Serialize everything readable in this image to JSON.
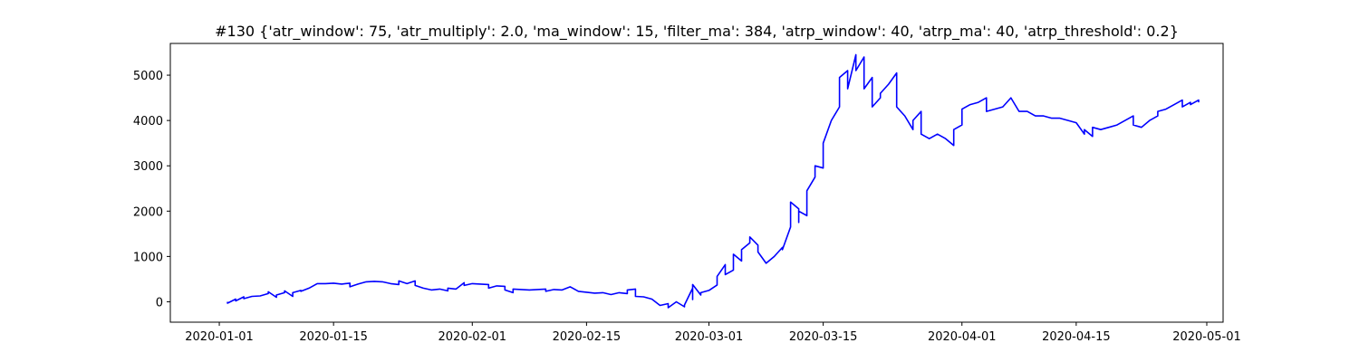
{
  "chart_data": {
    "type": "line",
    "title": "#130 {'atr_window': 75, 'atr_multiply': 2.0, 'ma_window': 15, 'filter_ma': 384, 'atrp_window': 40, 'atrp_ma': 40, 'atrp_threshold': 0.2}",
    "xlabel": "",
    "ylabel": "",
    "x_type": "date",
    "xlim": [
      "2019-12-26",
      "2020-05-03"
    ],
    "ylim": [
      -450,
      5700
    ],
    "x_ticks": [
      "2020-01-01",
      "2020-01-15",
      "2020-02-01",
      "2020-02-15",
      "2020-03-01",
      "2020-03-15",
      "2020-04-01",
      "2020-04-15",
      "2020-05-01"
    ],
    "y_ticks": [
      0,
      1000,
      2000,
      3000,
      4000,
      5000
    ],
    "grid": false,
    "series": [
      {
        "name": "",
        "color": "#0000ff",
        "points": [
          [
            "2020-01-02",
            0
          ],
          [
            "2020-01-02",
            -30
          ],
          [
            "2020-01-03",
            60
          ],
          [
            "2020-01-03",
            20
          ],
          [
            "2020-01-04",
            110
          ],
          [
            "2020-01-04",
            70
          ],
          [
            "2020-01-05",
            120
          ],
          [
            "2020-01-06",
            130
          ],
          [
            "2020-01-07",
            180
          ],
          [
            "2020-01-07",
            220
          ],
          [
            "2020-01-08",
            100
          ],
          [
            "2020-01-08",
            150
          ],
          [
            "2020-01-09",
            200
          ],
          [
            "2020-01-09",
            240
          ],
          [
            "2020-01-10",
            120
          ],
          [
            "2020-01-10",
            200
          ],
          [
            "2020-01-11",
            250
          ],
          [
            "2020-01-11",
            230
          ],
          [
            "2020-01-12",
            300
          ],
          [
            "2020-01-13",
            400
          ],
          [
            "2020-01-14",
            400
          ],
          [
            "2020-01-15",
            410
          ],
          [
            "2020-01-16",
            390
          ],
          [
            "2020-01-17",
            410
          ],
          [
            "2020-01-17",
            330
          ],
          [
            "2020-01-18",
            390
          ],
          [
            "2020-01-19",
            440
          ],
          [
            "2020-01-20",
            450
          ],
          [
            "2020-01-21",
            440
          ],
          [
            "2020-01-22",
            400
          ],
          [
            "2020-01-23",
            380
          ],
          [
            "2020-01-23",
            460
          ],
          [
            "2020-01-24",
            400
          ],
          [
            "2020-01-25",
            460
          ],
          [
            "2020-01-25",
            360
          ],
          [
            "2020-01-26",
            300
          ],
          [
            "2020-01-27",
            260
          ],
          [
            "2020-01-28",
            280
          ],
          [
            "2020-01-29",
            240
          ],
          [
            "2020-01-29",
            300
          ],
          [
            "2020-01-30",
            280
          ],
          [
            "2020-01-31",
            420
          ],
          [
            "2020-01-31",
            360
          ],
          [
            "2020-02-01",
            400
          ],
          [
            "2020-02-02",
            390
          ],
          [
            "2020-02-03",
            380
          ],
          [
            "2020-02-03",
            300
          ],
          [
            "2020-02-04",
            350
          ],
          [
            "2020-02-05",
            340
          ],
          [
            "2020-02-05",
            260
          ],
          [
            "2020-02-06",
            200
          ],
          [
            "2020-02-06",
            280
          ],
          [
            "2020-02-07",
            270
          ],
          [
            "2020-02-08",
            260
          ],
          [
            "2020-02-09",
            270
          ],
          [
            "2020-02-10",
            280
          ],
          [
            "2020-02-10",
            230
          ],
          [
            "2020-02-11",
            270
          ],
          [
            "2020-02-12",
            260
          ],
          [
            "2020-02-13",
            330
          ],
          [
            "2020-02-14",
            230
          ],
          [
            "2020-02-15",
            210
          ],
          [
            "2020-02-16",
            190
          ],
          [
            "2020-02-17",
            200
          ],
          [
            "2020-02-18",
            160
          ],
          [
            "2020-02-19",
            200
          ],
          [
            "2020-02-20",
            180
          ],
          [
            "2020-02-20",
            260
          ],
          [
            "2020-02-21",
            280
          ],
          [
            "2020-02-21",
            120
          ],
          [
            "2020-02-22",
            110
          ],
          [
            "2020-02-23",
            60
          ],
          [
            "2020-02-24",
            -80
          ],
          [
            "2020-02-25",
            -40
          ],
          [
            "2020-02-25",
            -130
          ],
          [
            "2020-02-26",
            0
          ],
          [
            "2020-02-27",
            -110
          ],
          [
            "2020-02-27",
            -70
          ],
          [
            "2020-02-28",
            300
          ],
          [
            "2020-02-28",
            50
          ],
          [
            "2020-02-28",
            380
          ],
          [
            "2020-02-29",
            150
          ],
          [
            "2020-02-29",
            200
          ],
          [
            "2020-03-01",
            250
          ],
          [
            "2020-03-02",
            370
          ],
          [
            "2020-03-02",
            560
          ],
          [
            "2020-03-03",
            820
          ],
          [
            "2020-03-03",
            600
          ],
          [
            "2020-03-04",
            700
          ],
          [
            "2020-03-04",
            1050
          ],
          [
            "2020-03-05",
            900
          ],
          [
            "2020-03-05",
            1150
          ],
          [
            "2020-03-06",
            1300
          ],
          [
            "2020-03-06",
            1430
          ],
          [
            "2020-03-07",
            1250
          ],
          [
            "2020-03-07",
            1100
          ],
          [
            "2020-03-08",
            850
          ],
          [
            "2020-03-09",
            1000
          ],
          [
            "2020-03-10",
            1200
          ],
          [
            "2020-03-10",
            1150
          ],
          [
            "2020-03-11",
            1650
          ],
          [
            "2020-03-11",
            1800
          ],
          [
            "2020-03-11",
            2200
          ],
          [
            "2020-03-12",
            2050
          ],
          [
            "2020-03-12",
            1750
          ],
          [
            "2020-03-12",
            2000
          ],
          [
            "2020-03-13",
            1900
          ],
          [
            "2020-03-13",
            2100
          ],
          [
            "2020-03-13",
            2450
          ],
          [
            "2020-03-14",
            2750
          ],
          [
            "2020-03-14",
            3000
          ],
          [
            "2020-03-15",
            2950
          ],
          [
            "2020-03-15",
            3500
          ],
          [
            "2020-03-16",
            4000
          ],
          [
            "2020-03-17",
            4300
          ],
          [
            "2020-03-17",
            4950
          ],
          [
            "2020-03-18",
            5100
          ],
          [
            "2020-03-18",
            4700
          ],
          [
            "2020-03-19",
            5450
          ],
          [
            "2020-03-19",
            5100
          ],
          [
            "2020-03-20",
            5400
          ],
          [
            "2020-03-20",
            4700
          ],
          [
            "2020-03-21",
            4950
          ],
          [
            "2020-03-21",
            4300
          ],
          [
            "2020-03-22",
            4500
          ],
          [
            "2020-03-22",
            4600
          ],
          [
            "2020-03-23",
            4800
          ],
          [
            "2020-03-24",
            5050
          ],
          [
            "2020-03-24",
            4300
          ],
          [
            "2020-03-25",
            4100
          ],
          [
            "2020-03-26",
            3800
          ],
          [
            "2020-03-26",
            4000
          ],
          [
            "2020-03-27",
            4200
          ],
          [
            "2020-03-27",
            3700
          ],
          [
            "2020-03-28",
            3600
          ],
          [
            "2020-03-29",
            3700
          ],
          [
            "2020-03-30",
            3600
          ],
          [
            "2020-03-31",
            3450
          ],
          [
            "2020-03-31",
            3800
          ],
          [
            "2020-04-01",
            3900
          ],
          [
            "2020-04-01",
            4250
          ],
          [
            "2020-04-02",
            4350
          ],
          [
            "2020-04-03",
            4400
          ],
          [
            "2020-04-04",
            4500
          ],
          [
            "2020-04-04",
            4200
          ],
          [
            "2020-04-05",
            4250
          ],
          [
            "2020-04-06",
            4300
          ],
          [
            "2020-04-07",
            4500
          ],
          [
            "2020-04-08",
            4200
          ],
          [
            "2020-04-09",
            4200
          ],
          [
            "2020-04-10",
            4100
          ],
          [
            "2020-04-11",
            4100
          ],
          [
            "2020-04-12",
            4050
          ],
          [
            "2020-04-13",
            4050
          ],
          [
            "2020-04-14",
            4000
          ],
          [
            "2020-04-15",
            3950
          ],
          [
            "2020-04-16",
            3700
          ],
          [
            "2020-04-16",
            3800
          ],
          [
            "2020-04-17",
            3650
          ],
          [
            "2020-04-17",
            3850
          ],
          [
            "2020-04-18",
            3800
          ],
          [
            "2020-04-19",
            3850
          ],
          [
            "2020-04-20",
            3900
          ],
          [
            "2020-04-21",
            4000
          ],
          [
            "2020-04-22",
            4100
          ],
          [
            "2020-04-22",
            3900
          ],
          [
            "2020-04-23",
            3850
          ],
          [
            "2020-04-24",
            4000
          ],
          [
            "2020-04-25",
            4100
          ],
          [
            "2020-04-25",
            4200
          ],
          [
            "2020-04-26",
            4250
          ],
          [
            "2020-04-27",
            4350
          ],
          [
            "2020-04-28",
            4450
          ],
          [
            "2020-04-28",
            4300
          ],
          [
            "2020-04-29",
            4400
          ],
          [
            "2020-04-29",
            4350
          ],
          [
            "2020-04-30",
            4450
          ],
          [
            "2020-04-30",
            4400
          ]
        ]
      }
    ]
  }
}
